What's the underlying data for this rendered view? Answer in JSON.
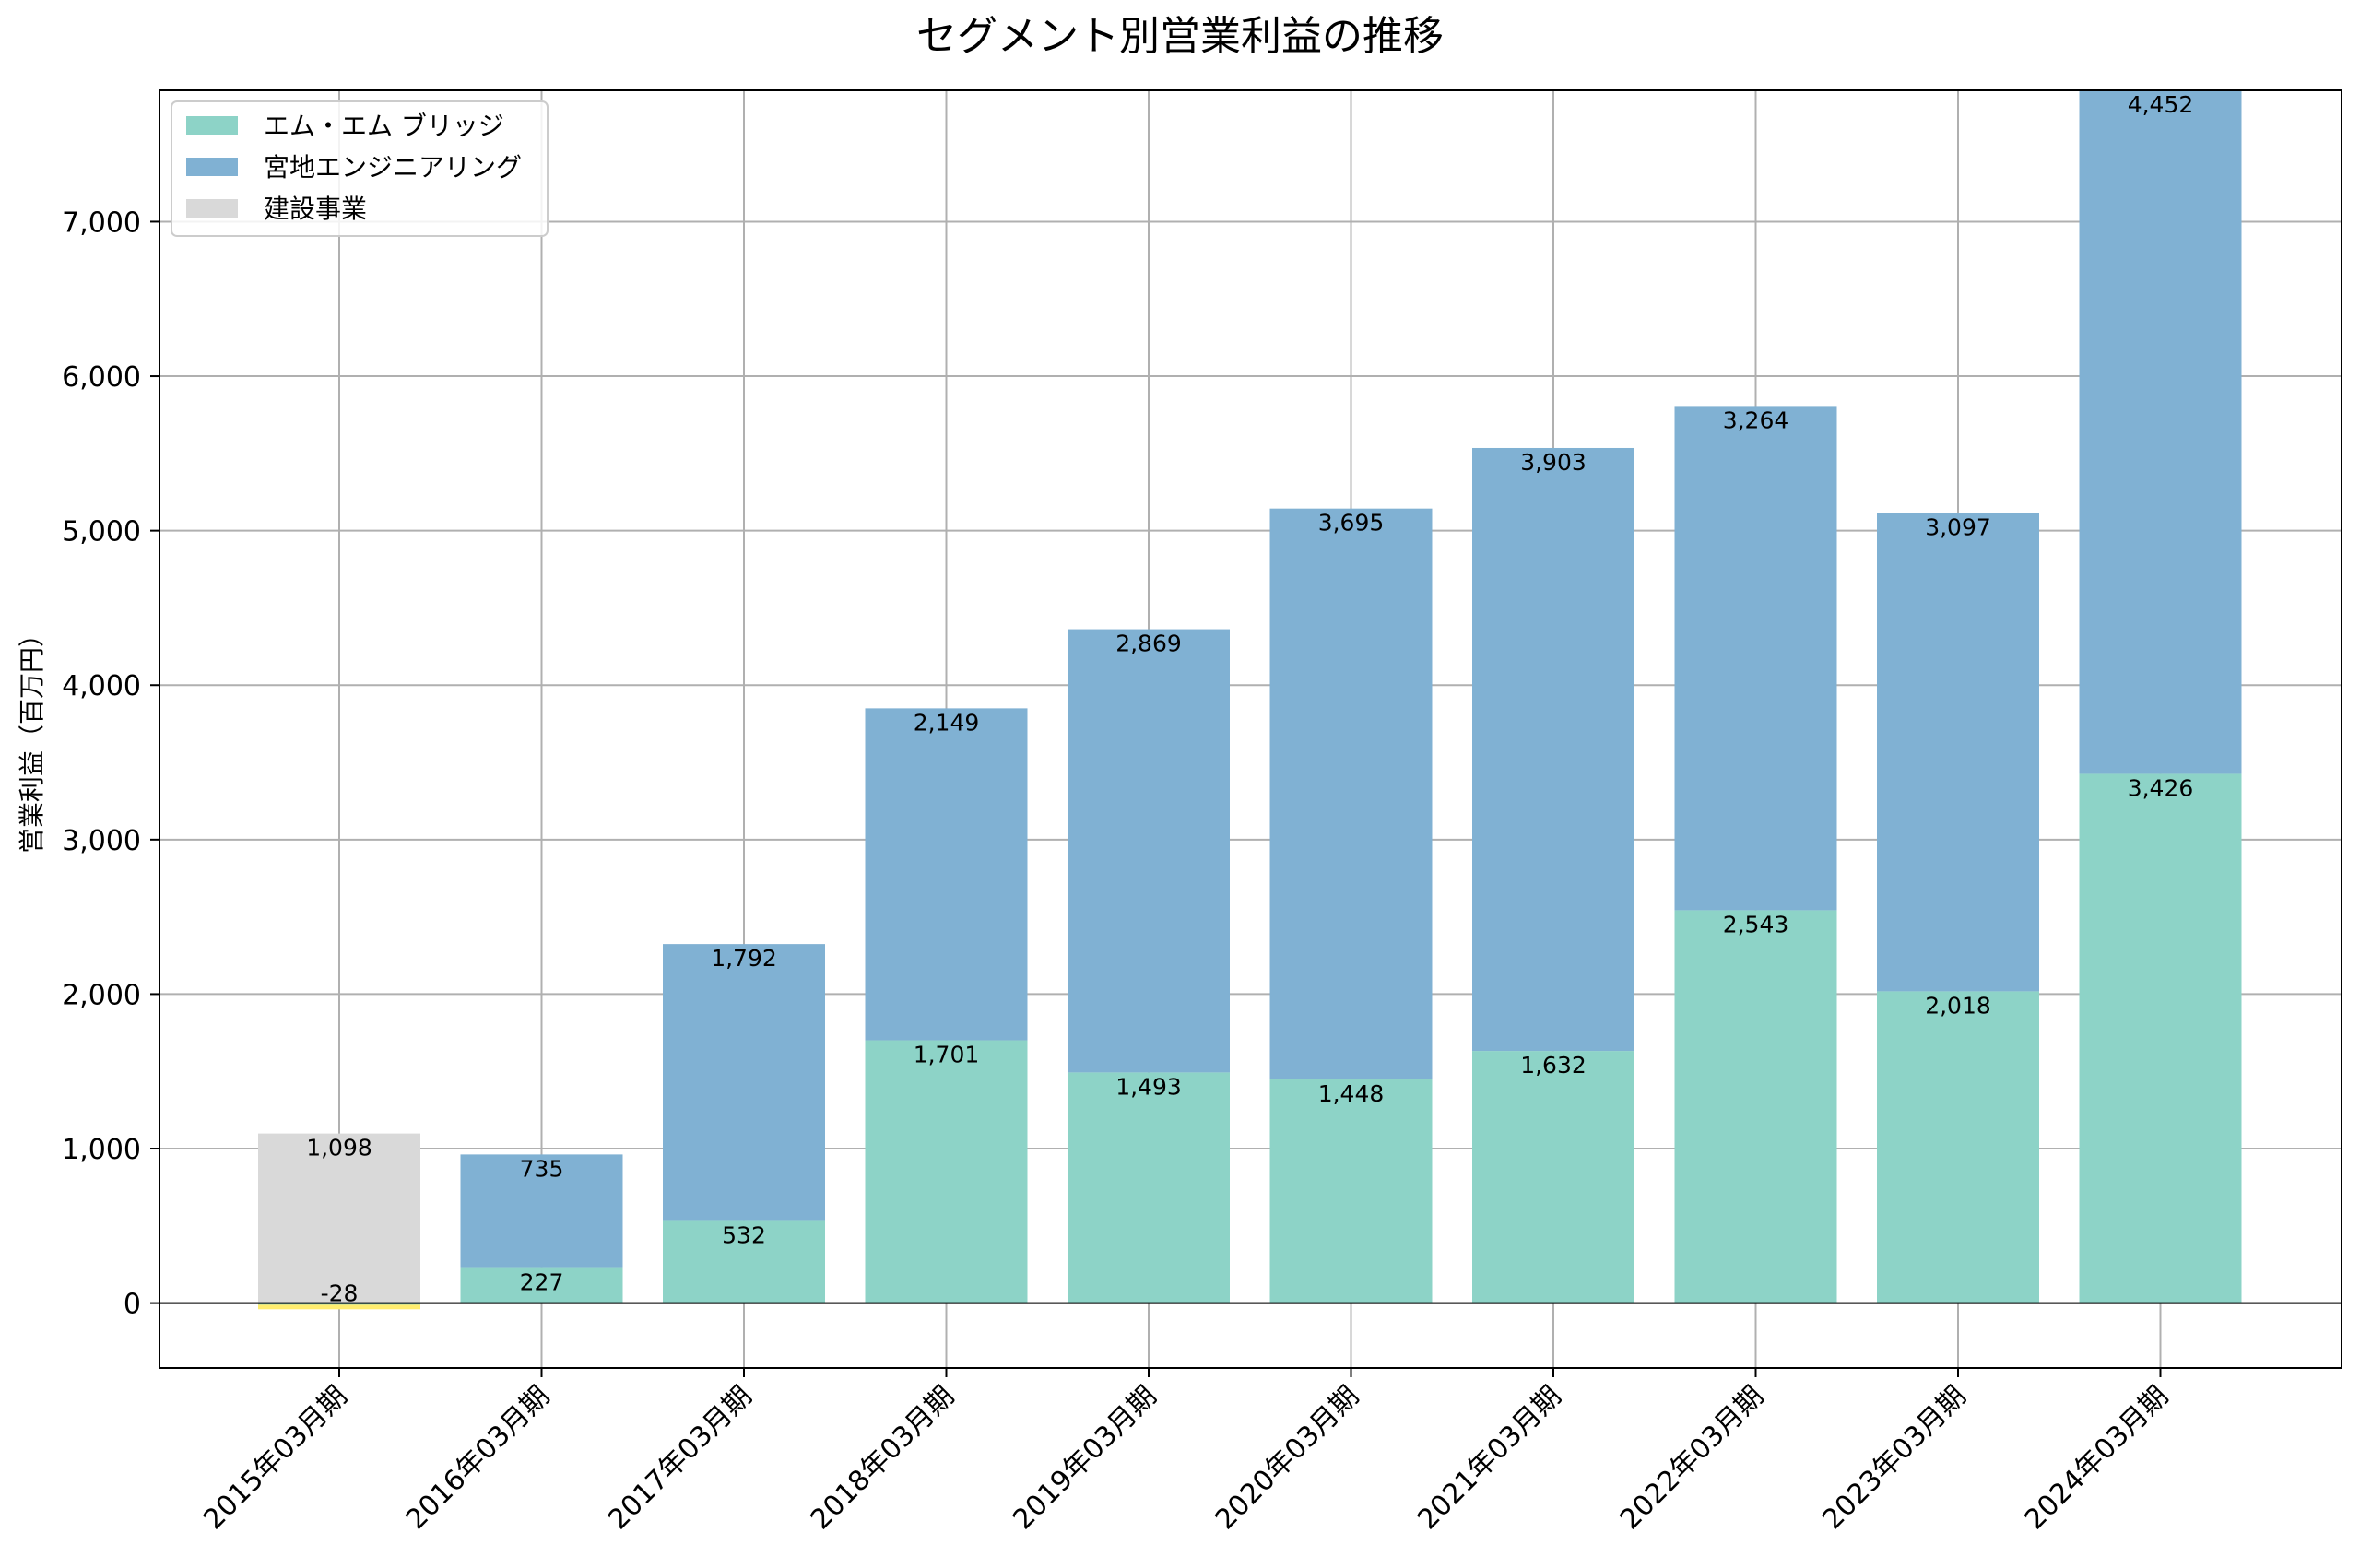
{
  "chart_data": {
    "type": "bar",
    "stacked": true,
    "title": "セグメント別営業利益の推移",
    "xlabel": "",
    "ylabel": "営業利益（百万円）",
    "ylim": [
      -420,
      7850
    ],
    "yticks": [
      0,
      1000,
      2000,
      3000,
      4000,
      5000,
      6000,
      7000
    ],
    "ytick_labels": [
      "0",
      "1,000",
      "2,000",
      "3,000",
      "4,000",
      "5,000",
      "6,000",
      "7,000"
    ],
    "grid": true,
    "legend_position": "top-left",
    "categories": [
      "2015年03月期",
      "2016年03月期",
      "2017年03月期",
      "2018年03月期",
      "2019年03月期",
      "2020年03月期",
      "2021年03月期",
      "2022年03月期",
      "2023年03月期",
      "2024年03月期"
    ],
    "series": [
      {
        "name": "エム・エム ブリッジ",
        "color": "#8dd3c7",
        "values": [
          -28,
          227,
          532,
          1701,
          1493,
          1448,
          1632,
          2543,
          2018,
          3426
        ],
        "labels": [
          "-28",
          "227",
          "532",
          "1,701",
          "1,493",
          "1,448",
          "1,632",
          "2,543",
          "2,018",
          "3,426"
        ]
      },
      {
        "name": "宮地エンジニアリング",
        "color": "#80b1d3",
        "values": [
          null,
          735,
          1792,
          2149,
          2869,
          3695,
          3903,
          3264,
          3097,
          4452
        ],
        "labels": [
          "",
          "735",
          "1,792",
          "2,149",
          "2,869",
          "3,695",
          "3,903",
          "3,264",
          "3,097",
          "4,452"
        ]
      },
      {
        "name": "建設事業",
        "color": "#d9d9d9",
        "values": [
          1098,
          null,
          null,
          null,
          null,
          null,
          null,
          null,
          null,
          null
        ],
        "labels": [
          "1,098",
          "",
          "",
          "",
          "",
          "",
          "",
          "",
          "",
          ""
        ]
      }
    ],
    "negative_bar_color": "#ffed6f"
  }
}
